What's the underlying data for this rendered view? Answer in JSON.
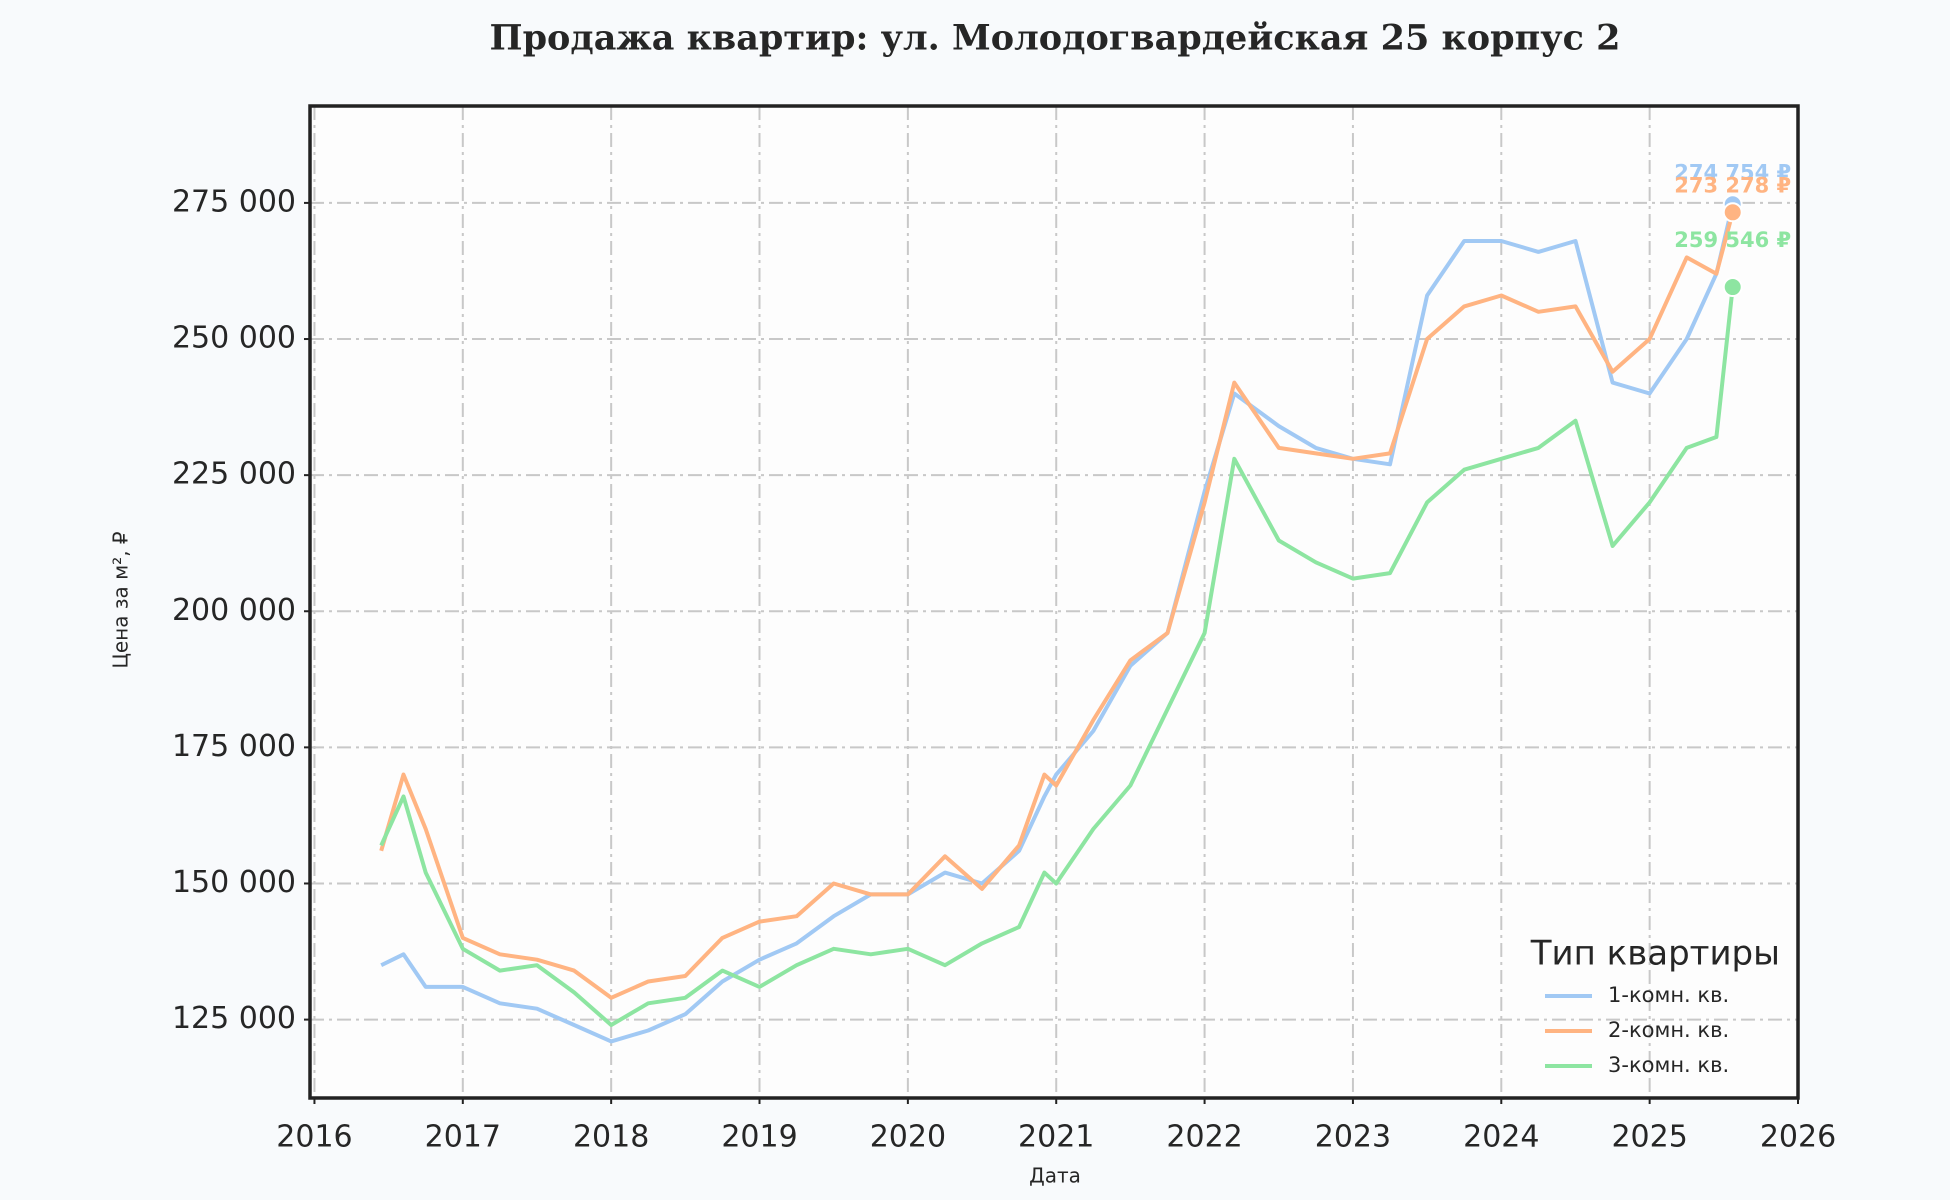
{
  "chart_data": {
    "type": "line",
    "title": "Продажа квартир: ул. Молодогвардейская 25 корпус 2",
    "x_label": "Дата",
    "y_label": "Цена за м², ₽",
    "legend_title": "Тип квартиры",
    "legend": "lower right",
    "grid": true,
    "x": [
      2016.45,
      2016.6,
      2016.75,
      2017.0,
      2017.25,
      2017.5,
      2017.75,
      2018.0,
      2018.25,
      2018.5,
      2018.75,
      2019.0,
      2019.25,
      2019.5,
      2019.75,
      2020.0,
      2020.25,
      2020.5,
      2020.75,
      2020.92,
      2021.0,
      2021.25,
      2021.5,
      2021.75,
      2022.0,
      2022.2,
      2022.5,
      2022.75,
      2023.0,
      2023.25,
      2023.5,
      2023.75,
      2024.0,
      2024.25,
      2024.5,
      2024.75,
      2025.0,
      2025.25,
      2025.45,
      2025.56
    ],
    "series": [
      {
        "name": "1-комн. кв.",
        "color": "#a1c9f4",
        "values": [
          135000,
          137000,
          131000,
          131000,
          128000,
          127000,
          124000,
          121000,
          123000,
          126000,
          132000,
          136000,
          139000,
          144000,
          148000,
          148000,
          152000,
          150000,
          156000,
          166000,
          170000,
          178000,
          190000,
          196000,
          222000,
          240000,
          234000,
          230000,
          228000,
          227000,
          258000,
          268000,
          268000,
          266000,
          268000,
          242000,
          240000,
          250000,
          262000,
          274754
        ],
        "value_labels": [
          null,
          null,
          null,
          null,
          null,
          null,
          null,
          null,
          null,
          null,
          null,
          null,
          null,
          null,
          null,
          null,
          null,
          null,
          null,
          null,
          null,
          null,
          null,
          null,
          null,
          null,
          null,
          null,
          null,
          null,
          null,
          null,
          null,
          null,
          null,
          null,
          null,
          null,
          null,
          "274 754 ₽"
        ]
      },
      {
        "name": "2-комн. кв.",
        "color": "#ffb482",
        "values": [
          156000,
          170000,
          160000,
          140000,
          137000,
          136000,
          134000,
          129000,
          132000,
          133000,
          140000,
          143000,
          144000,
          150000,
          148000,
          148000,
          155000,
          149000,
          157000,
          170000,
          168000,
          180000,
          191000,
          196000,
          220000,
          242000,
          230000,
          229000,
          228000,
          229000,
          250000,
          256000,
          258000,
          255000,
          256000,
          244000,
          250000,
          265000,
          262000,
          273278
        ],
        "value_labels": [
          null,
          null,
          null,
          null,
          null,
          null,
          null,
          null,
          null,
          null,
          null,
          null,
          null,
          null,
          null,
          null,
          null,
          null,
          null,
          null,
          null,
          null,
          null,
          null,
          null,
          null,
          null,
          null,
          null,
          null,
          null,
          null,
          null,
          null,
          null,
          null,
          null,
          null,
          null,
          "273 278 ₽"
        ]
      },
      {
        "name": "3-комн. кв.",
        "color": "#8de5a1",
        "values": [
          157000,
          166000,
          152000,
          138000,
          134000,
          135000,
          130000,
          124000,
          128000,
          129000,
          134000,
          131000,
          135000,
          138000,
          137000,
          138000,
          135000,
          139000,
          142000,
          152000,
          150000,
          160000,
          168000,
          182000,
          196000,
          228000,
          213000,
          209000,
          206000,
          207000,
          220000,
          226000,
          228000,
          230000,
          235000,
          212000,
          220000,
          230000,
          232000,
          259546
        ],
        "value_labels": [
          null,
          null,
          null,
          null,
          null,
          null,
          null,
          null,
          null,
          null,
          null,
          null,
          null,
          null,
          null,
          null,
          null,
          null,
          null,
          null,
          null,
          null,
          null,
          null,
          null,
          null,
          null,
          null,
          null,
          null,
          null,
          null,
          null,
          null,
          null,
          null,
          null,
          null,
          null,
          "259 546 ₽"
        ]
      }
    ],
    "xlim": [
      2015.97,
      2026
    ],
    "xticks": [
      2016,
      2017,
      2018,
      2019,
      2020,
      2021,
      2022,
      2023,
      2024,
      2025,
      2026
    ],
    "ylim": [
      110600,
      292800
    ],
    "yticks": [
      {
        "value": 125000,
        "label": "125 000"
      },
      {
        "value": 150000,
        "label": "150 000"
      },
      {
        "value": 175000,
        "label": "175 000"
      },
      {
        "value": 200000,
        "label": "200 000"
      },
      {
        "value": 225000,
        "label": "225 000"
      },
      {
        "value": 250000,
        "label": "250 000"
      },
      {
        "value": 275000,
        "label": "275 000"
      }
    ]
  }
}
